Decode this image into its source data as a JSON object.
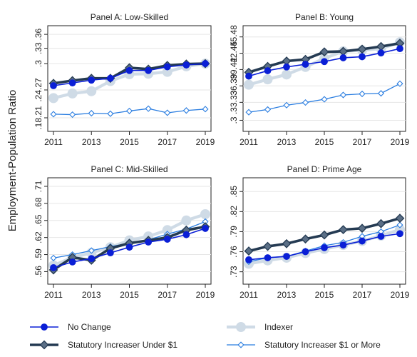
{
  "figure": {
    "y_axis_label": "Employment-Population Ratio"
  },
  "colors": {
    "no_change": "#0a1fd6",
    "indexer": "#cfdbe6",
    "under1": "#1f3a5c",
    "over1": "#2a7de0",
    "axis": "#222222"
  },
  "legend": {
    "items": [
      {
        "key": "no_change",
        "label": "No Change"
      },
      {
        "key": "indexer",
        "label": "Indexer"
      },
      {
        "key": "under1",
        "label": "Statutory Increaser Under $1"
      },
      {
        "key": "over1",
        "label": "Statutory Increaser $1 or More"
      }
    ]
  },
  "chart_data": [
    {
      "type": "line",
      "title": "Panel A: Low-Skilled",
      "x": [
        2011,
        2012,
        2013,
        2014,
        2015,
        2016,
        2017,
        2018,
        2019
      ],
      "x_ticks": [
        2011,
        2013,
        2015,
        2017,
        2019
      ],
      "y_ticks": [
        0.1821,
        0.2427,
        0.3,
        0.3333,
        0.3636
      ],
      "y_tick_labels": [
        ".18.21",
        ".24.27",
        ".3",
        ".33",
        ".36"
      ],
      "ylim": [
        0.165,
        0.37
      ],
      "grid": true,
      "series": [
        {
          "key": "no_change",
          "name": "No Change",
          "values": [
            0.252,
            0.258,
            0.264,
            0.268,
            0.285,
            0.285,
            0.293,
            0.297,
            0.3
          ]
        },
        {
          "key": "indexer",
          "name": "Indexer",
          "values": [
            0.225,
            0.235,
            0.24,
            0.262,
            0.277,
            0.278,
            0.282,
            0.294,
            0.3
          ]
        },
        {
          "key": "under1",
          "name": "Statutory Increaser Under $1",
          "values": [
            0.257,
            0.263,
            0.268,
            0.268,
            0.291,
            0.288,
            0.296,
            0.299,
            0.3
          ]
        },
        {
          "key": "over1",
          "name": "Statutory Increaser $1 or More",
          "values": [
            0.19,
            0.189,
            0.192,
            0.191,
            0.197,
            0.202,
            0.193,
            0.198,
            0.201
          ]
        }
      ]
    },
    {
      "type": "line",
      "title": "Panel B: Young",
      "x": [
        2011,
        2012,
        2013,
        2014,
        2015,
        2016,
        2017,
        2018,
        2019
      ],
      "x_ticks": [
        2011,
        2013,
        2015,
        2017,
        2019
      ],
      "y_ticks": [
        0.3,
        0.3333,
        0.3639,
        0.3942,
        0.4245,
        0.4548
      ],
      "y_tick_labels": [
        ".3",
        ".33.33",
        ".36.39",
        ".39.42",
        ".42.45",
        ".45.48"
      ],
      "ylim": [
        0.29,
        0.465
      ],
      "grid": true,
      "series": [
        {
          "key": "no_change",
          "name": "No Change",
          "values": [
            0.382,
            0.392,
            0.399,
            0.404,
            0.409,
            0.416,
            0.418,
            0.425,
            0.433
          ]
        },
        {
          "key": "indexer",
          "name": "Indexer",
          "values": [
            0.366,
            0.376,
            0.385,
            0.399,
            0.415,
            0.428,
            0.43,
            0.433,
            0.445
          ]
        },
        {
          "key": "under1",
          "name": "Statutory Increaser Under $1",
          "values": [
            0.389,
            0.4,
            0.41,
            0.413,
            0.427,
            0.428,
            0.432,
            0.437,
            0.443
          ]
        },
        {
          "key": "over1",
          "name": "Statutory Increaser $1 or More",
          "values": [
            0.315,
            0.32,
            0.328,
            0.333,
            0.339,
            0.347,
            0.349,
            0.35,
            0.368
          ]
        }
      ]
    },
    {
      "type": "line",
      "title": "Panel C: Mid-Skilled",
      "x": [
        2011,
        2012,
        2013,
        2014,
        2015,
        2016,
        2017,
        2018,
        2019
      ],
      "x_ticks": [
        2011,
        2013,
        2015,
        2017,
        2019
      ],
      "y_ticks": [
        0.56,
        0.59,
        0.62,
        0.65,
        0.68,
        0.71
      ],
      "y_tick_labels": [
        ".56",
        ".59",
        ".62",
        ".65",
        ".68",
        ".71"
      ],
      "ylim": [
        0.548,
        0.715
      ],
      "grid": true,
      "series": [
        {
          "key": "no_change",
          "name": "No Change",
          "values": [
            0.567,
            0.577,
            0.583,
            0.593,
            0.603,
            0.612,
            0.617,
            0.625,
            0.636
          ]
        },
        {
          "key": "indexer",
          "name": "Indexer",
          "values": [
            0.571,
            0.585,
            0.593,
            0.603,
            0.615,
            0.622,
            0.633,
            0.65,
            0.661
          ]
        },
        {
          "key": "under1",
          "name": "Statutory Increaser Under $1",
          "values": [
            0.563,
            0.585,
            0.58,
            0.601,
            0.61,
            0.615,
            0.62,
            0.633,
            0.639
          ]
        },
        {
          "key": "over1",
          "name": "Statutory Increaser $1 or More",
          "values": [
            0.584,
            0.59,
            0.597,
            0.604,
            0.61,
            0.616,
            0.626,
            0.635,
            0.648
          ]
        }
      ]
    },
    {
      "type": "line",
      "title": "Panel D: Prime Age",
      "x": [
        2011,
        2012,
        2013,
        2014,
        2015,
        2016,
        2017,
        2018,
        2019
      ],
      "x_ticks": [
        2011,
        2013,
        2015,
        2017,
        2019
      ],
      "y_ticks": [
        0.73,
        0.76,
        0.79,
        0.82,
        0.85
      ],
      "y_tick_labels": [
        ".73",
        ".76",
        ".79",
        ".82",
        ".85"
      ],
      "ylim": [
        0.72,
        0.862
      ],
      "grid": true,
      "series": [
        {
          "key": "no_change",
          "name": "No Change",
          "values": [
            0.748,
            0.751,
            0.753,
            0.76,
            0.766,
            0.77,
            0.776,
            0.783,
            0.787
          ]
        },
        {
          "key": "indexer",
          "name": "Indexer",
          "values": [
            0.742,
            0.747,
            0.751,
            0.758,
            0.764,
            0.77,
            0.776,
            0.784,
            0.793
          ]
        },
        {
          "key": "under1",
          "name": "Statutory Increaser Under $1",
          "values": [
            0.761,
            0.768,
            0.772,
            0.779,
            0.785,
            0.793,
            0.795,
            0.802,
            0.81
          ]
        },
        {
          "key": "over1",
          "name": "Statutory Increaser $1 or More",
          "values": [
            0.745,
            0.751,
            0.753,
            0.761,
            0.769,
            0.774,
            0.783,
            0.79,
            0.8
          ]
        }
      ]
    }
  ]
}
